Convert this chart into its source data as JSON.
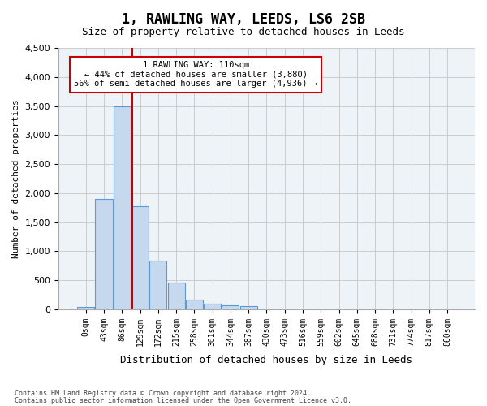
{
  "title": "1, RAWLING WAY, LEEDS, LS6 2SB",
  "subtitle": "Size of property relative to detached houses in Leeds",
  "xlabel": "Distribution of detached houses by size in Leeds",
  "ylabel": "Number of detached properties",
  "bar_color": "#c5d8ed",
  "bar_edge_color": "#5b9bd5",
  "bins": [
    "0sqm",
    "43sqm",
    "86sqm",
    "129sqm",
    "172sqm",
    "215sqm",
    "258sqm",
    "301sqm",
    "344sqm",
    "387sqm",
    "430sqm",
    "473sqm",
    "516sqm",
    "559sqm",
    "602sqm",
    "645sqm",
    "688sqm",
    "731sqm",
    "774sqm",
    "817sqm",
    "860sqm"
  ],
  "values": [
    40,
    1900,
    3500,
    1780,
    840,
    455,
    160,
    100,
    65,
    50,
    0,
    0,
    0,
    0,
    0,
    0,
    0,
    0,
    0,
    0,
    0
  ],
  "ylim": [
    0,
    4500
  ],
  "yticks": [
    0,
    500,
    1000,
    1500,
    2000,
    2500,
    3000,
    3500,
    4000,
    4500
  ],
  "vline_x": 2.56,
  "annotation_text": "1 RAWLING WAY: 110sqm\n← 44% of detached houses are smaller (3,880)\n56% of semi-detached houses are larger (4,936) →",
  "annotation_box_color": "#ffffff",
  "annotation_box_edge_color": "#cc0000",
  "grid_color": "#cccccc",
  "vline_color": "#cc0000",
  "footer_line1": "Contains HM Land Registry data © Crown copyright and database right 2024.",
  "footer_line2": "Contains public sector information licensed under the Open Government Licence v3.0.",
  "bg_color": "#ffffff",
  "plot_bg_color": "#eef3f8"
}
